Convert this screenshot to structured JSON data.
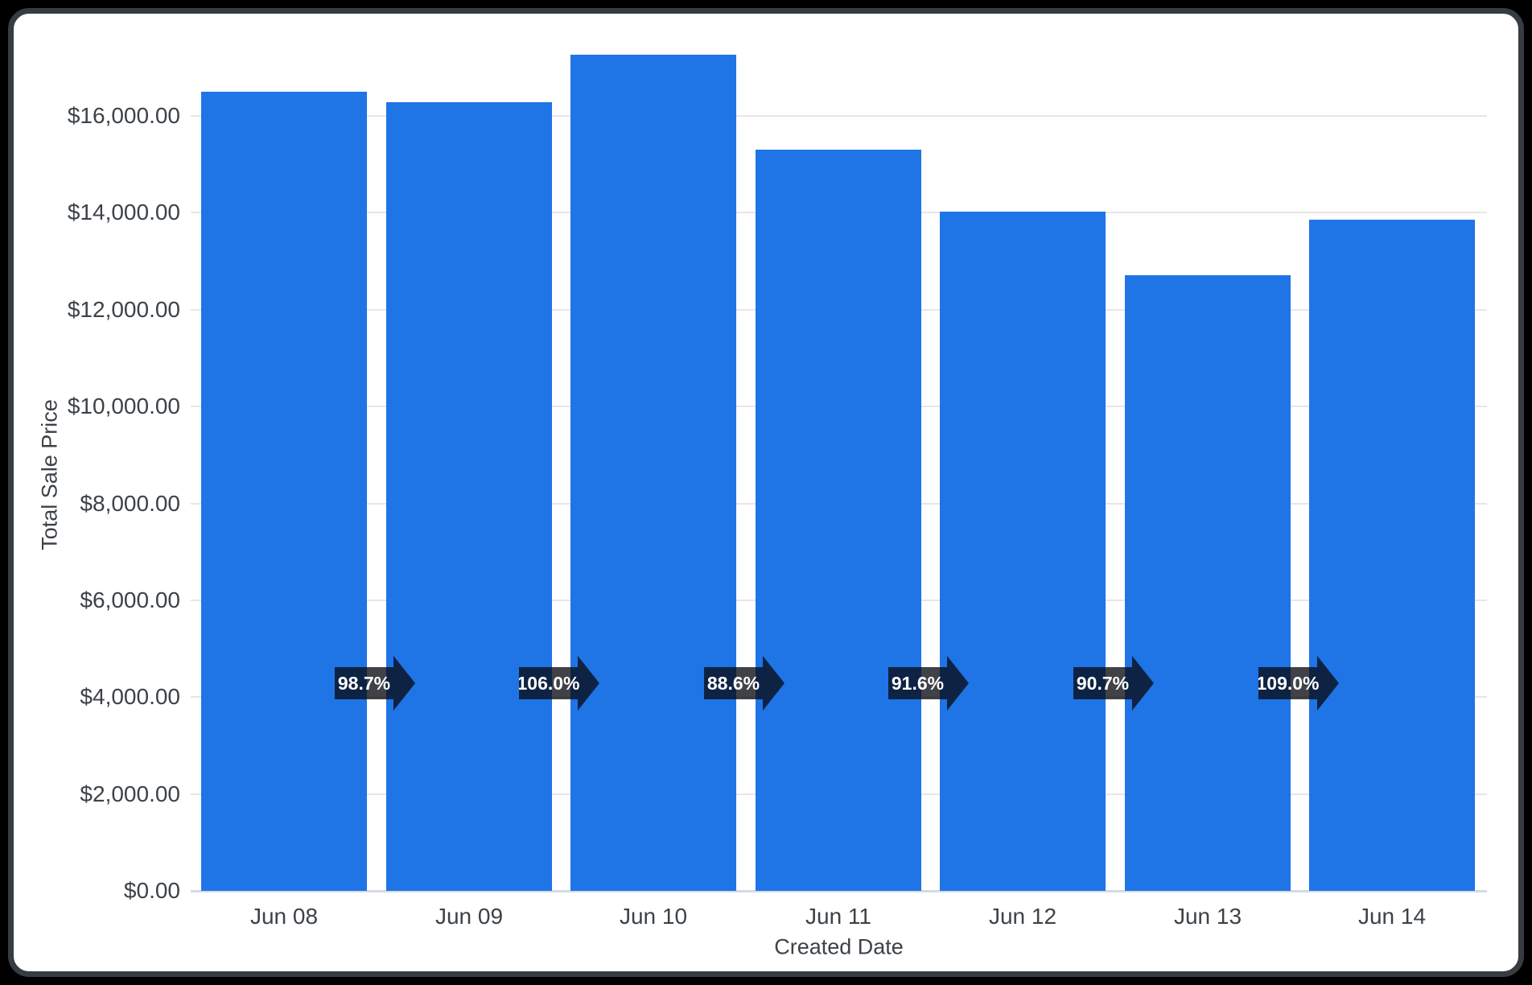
{
  "window": {
    "outer_background": "#000000",
    "frame_border_color": "#363c42",
    "card_background": "#ffffff"
  },
  "chart_data": {
    "type": "bar",
    "title": "",
    "xlabel": "Created Date",
    "ylabel": "Total Sale Price",
    "categories": [
      "Jun 08",
      "Jun 09",
      "Jun 10",
      "Jun 11",
      "Jun 12",
      "Jun 13",
      "Jun 14"
    ],
    "series": [
      {
        "name": "Total Sale Price",
        "values": [
          16500,
          16290,
          17265,
          15300,
          14015,
          12710,
          13855
        ]
      }
    ],
    "percent_change_labels": [
      "98.7%",
      "106.0%",
      "88.6%",
      "91.6%",
      "90.7%",
      "109.0%"
    ],
    "y_ticks": [
      {
        "value": 0,
        "label": "$0.00"
      },
      {
        "value": 2000,
        "label": "$2,000.00"
      },
      {
        "value": 4000,
        "label": "$4,000.00"
      },
      {
        "value": 6000,
        "label": "$6,000.00"
      },
      {
        "value": 8000,
        "label": "$8,000.00"
      },
      {
        "value": 10000,
        "label": "$10,000.00"
      },
      {
        "value": 12000,
        "label": "$12,000.00"
      },
      {
        "value": 14000,
        "label": "$14,000.00"
      },
      {
        "value": 16000,
        "label": "$16,000.00"
      }
    ],
    "ylim": [
      0,
      18000
    ],
    "grid": true,
    "legend_position": "none",
    "colors": {
      "bar": "#1f74e6",
      "gridline": "#e6e6e6",
      "baseline": "#d5d9e8",
      "axis_text": "#3c4248",
      "arrow_fill": "rgba(10,13,20,0.78)",
      "arrow_text": "#ffffff"
    }
  }
}
